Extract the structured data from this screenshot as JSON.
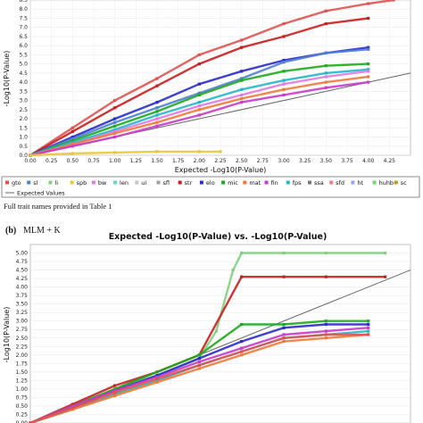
{
  "figure_note": "Full trait names provided in Table 1",
  "panel_b_label": "(b)",
  "panel_b_model": "MLM + K",
  "legend_items": [
    {
      "name": "gto",
      "color": "#e05252"
    },
    {
      "name": "sl",
      "color": "#4f7fd6"
    },
    {
      "name": "li",
      "color": "#7fd17f"
    },
    {
      "name": "spb",
      "color": "#e8c63c"
    },
    {
      "name": "bw",
      "color": "#e07be0"
    },
    {
      "name": "len",
      "color": "#5fd6d6"
    },
    {
      "name": "ui",
      "color": "#c7c7c7"
    },
    {
      "name": "sfl",
      "color": "#a0a0a0"
    },
    {
      "name": "str",
      "color": "#c81e1e"
    },
    {
      "name": "elo",
      "color": "#2c2cc8"
    },
    {
      "name": "mic",
      "color": "#1fa81f"
    },
    {
      "name": "mat",
      "color": "#f07a3c"
    },
    {
      "name": "fin",
      "color": "#c83cc8"
    },
    {
      "name": "fps",
      "color": "#22b7c8"
    },
    {
      "name": "ssa",
      "color": "#777777"
    },
    {
      "name": "sfd",
      "color": "#f08080"
    },
    {
      "name": "ht",
      "color": "#8faaf0"
    },
    {
      "name": "huhb",
      "color": "#6edc6e"
    },
    {
      "name": "sc",
      "color": "#b89b20"
    }
  ],
  "expected_legend_label": "Expected Values",
  "chart_data": [
    {
      "type": "scatter",
      "title": "",
      "xlabel": "Expected -Log10(P-Value)",
      "ylabel": "-Log10(P-Value)",
      "xlim": [
        0,
        4.5
      ],
      "ylim": [
        0,
        8.5
      ],
      "xticks": [
        "0.00",
        "0.25",
        "0.50",
        "0.75",
        "1.00",
        "1.25",
        "1.50",
        "1.75",
        "2.00",
        "2.25",
        "2.50",
        "2.75",
        "3.00",
        "3.25",
        "3.50",
        "3.75",
        "4.00",
        "4.25"
      ],
      "yticks": [
        "0.0",
        "0.5",
        "1.0",
        "1.5",
        "2.0",
        "2.5",
        "3.0",
        "3.5",
        "4.0",
        "4.5",
        "5.0",
        "5.5",
        "6.0",
        "6.5",
        "7.0",
        "7.5",
        "8.0",
        "8.5"
      ],
      "expected_line": {
        "x": [
          0,
          4.5
        ],
        "y": [
          0,
          4.5
        ]
      },
      "series": [
        {
          "name": "gto",
          "x": [
            0,
            0.5,
            1.0,
            1.5,
            2.0,
            2.5,
            3.0,
            3.5,
            4.0,
            4.3
          ],
          "y": [
            0,
            1.5,
            3.0,
            4.2,
            5.5,
            6.3,
            7.2,
            7.9,
            8.3,
            8.5
          ]
        },
        {
          "name": "str",
          "x": [
            0,
            0.5,
            1.0,
            1.5,
            2.0,
            2.5,
            3.0,
            3.5,
            4.0
          ],
          "y": [
            0,
            1.3,
            2.6,
            3.8,
            5.0,
            5.9,
            6.5,
            7.2,
            7.5
          ]
        },
        {
          "name": "elo",
          "x": [
            0,
            0.5,
            1.0,
            1.5,
            2.0,
            2.5,
            3.0,
            3.5,
            4.0
          ],
          "y": [
            0,
            1.0,
            2.0,
            2.9,
            3.9,
            4.6,
            5.2,
            5.6,
            5.9
          ]
        },
        {
          "name": "sl",
          "x": [
            0,
            0.5,
            1.0,
            1.5,
            2.0,
            2.5,
            3.0,
            3.5,
            4.0
          ],
          "y": [
            0,
            0.9,
            1.8,
            2.6,
            3.4,
            4.2,
            5.1,
            5.6,
            5.8
          ]
        },
        {
          "name": "mic",
          "x": [
            0,
            0.5,
            1.0,
            1.5,
            2.0,
            2.5,
            3.0,
            3.5,
            4.0
          ],
          "y": [
            0,
            0.8,
            1.6,
            2.4,
            3.3,
            4.1,
            4.6,
            4.9,
            5.0
          ]
        },
        {
          "name": "fps",
          "x": [
            0,
            0.5,
            1.0,
            1.5,
            2.0,
            2.5,
            3.0,
            3.5,
            4.0
          ],
          "y": [
            0,
            0.7,
            1.4,
            2.2,
            2.9,
            3.6,
            4.1,
            4.5,
            4.7
          ]
        },
        {
          "name": "bw",
          "x": [
            0,
            0.5,
            1.0,
            1.5,
            2.0,
            2.5,
            3.0,
            3.5,
            4.0
          ],
          "y": [
            0,
            0.6,
            1.3,
            2.0,
            2.7,
            3.3,
            3.9,
            4.3,
            4.6
          ]
        },
        {
          "name": "mat",
          "x": [
            0,
            0.5,
            1.0,
            1.5,
            2.0,
            2.5,
            3.0,
            3.5,
            4.0
          ],
          "y": [
            0,
            0.6,
            1.2,
            1.8,
            2.5,
            3.1,
            3.6,
            4.0,
            4.3
          ]
        },
        {
          "name": "fin",
          "x": [
            0,
            0.5,
            1.0,
            1.5,
            2.0,
            2.5,
            3.0,
            3.5,
            4.0
          ],
          "y": [
            0,
            0.5,
            1.0,
            1.6,
            2.2,
            2.9,
            3.3,
            3.7,
            4.0
          ]
        },
        {
          "name": "spb",
          "x": [
            0,
            0.5,
            1.0,
            1.5,
            2.0,
            2.25
          ],
          "y": [
            0,
            0.1,
            0.15,
            0.2,
            0.2,
            0.2
          ]
        }
      ]
    },
    {
      "type": "scatter",
      "title": "Expected -Log10(P-Value) vs. -Log10(P-Value)",
      "xlabel": "",
      "ylabel": "-Log10(P-Value)",
      "xlim": [
        0,
        4.5
      ],
      "ylim": [
        0,
        5.25
      ],
      "yticks": [
        "0.00",
        "0.25",
        "0.50",
        "0.75",
        "1.00",
        "1.25",
        "1.50",
        "1.75",
        "2.00",
        "2.25",
        "2.50",
        "2.75",
        "3.00",
        "3.25",
        "3.50",
        "3.75",
        "4.00",
        "4.25",
        "4.50",
        "4.75",
        "5.00"
      ],
      "expected_line": {
        "x": [
          0,
          4.5
        ],
        "y": [
          0,
          4.5
        ]
      },
      "series": [
        {
          "name": "li",
          "x": [
            0,
            0.5,
            1.0,
            1.5,
            2.0,
            2.2,
            2.4,
            2.5,
            3.0,
            3.5,
            4.2
          ],
          "y": [
            0,
            0.5,
            1.0,
            1.4,
            1.9,
            2.7,
            4.5,
            5.0,
            5.0,
            5.0,
            5.0
          ]
        },
        {
          "name": "str",
          "x": [
            0,
            0.5,
            1.0,
            1.5,
            2.0,
            2.5,
            3.0,
            3.5,
            4.2
          ],
          "y": [
            0,
            0.55,
            1.1,
            1.5,
            2.0,
            4.3,
            4.3,
            4.3,
            4.3
          ]
        },
        {
          "name": "mic",
          "x": [
            0,
            0.5,
            1.0,
            1.5,
            2.0,
            2.5,
            3.0,
            3.5,
            4.0
          ],
          "y": [
            0,
            0.5,
            1.0,
            1.5,
            2.0,
            2.9,
            2.9,
            3.0,
            3.0
          ]
        },
        {
          "name": "elo",
          "x": [
            0,
            0.5,
            1.0,
            1.5,
            2.0,
            2.5,
            3.0,
            3.5,
            4.0
          ],
          "y": [
            0,
            0.45,
            0.95,
            1.4,
            1.9,
            2.4,
            2.8,
            2.9,
            2.9
          ]
        },
        {
          "name": "fin",
          "x": [
            0,
            0.5,
            1.0,
            1.5,
            2.0,
            2.5,
            3.0,
            3.5,
            4.0
          ],
          "y": [
            0,
            0.5,
            0.95,
            1.35,
            1.8,
            2.2,
            2.6,
            2.7,
            2.8
          ]
        },
        {
          "name": "fps",
          "x": [
            0,
            0.5,
            1.0,
            1.5,
            2.0,
            2.5,
            3.0,
            3.5,
            4.0
          ],
          "y": [
            0,
            0.4,
            0.85,
            1.25,
            1.7,
            2.1,
            2.5,
            2.6,
            2.7
          ]
        },
        {
          "name": "mat",
          "x": [
            0,
            0.5,
            1.0,
            1.5,
            2.0,
            2.5,
            3.0,
            3.5,
            4.0
          ],
          "y": [
            0,
            0.4,
            0.8,
            1.2,
            1.6,
            2.0,
            2.4,
            2.5,
            2.6
          ]
        },
        {
          "name": "gto",
          "x": [
            0,
            0.5,
            1.0,
            1.5,
            2.0,
            2.5,
            3.0,
            3.5,
            4.0
          ],
          "y": [
            0,
            0.45,
            0.9,
            1.3,
            1.7,
            2.1,
            2.5,
            2.6,
            2.6
          ]
        }
      ]
    }
  ]
}
